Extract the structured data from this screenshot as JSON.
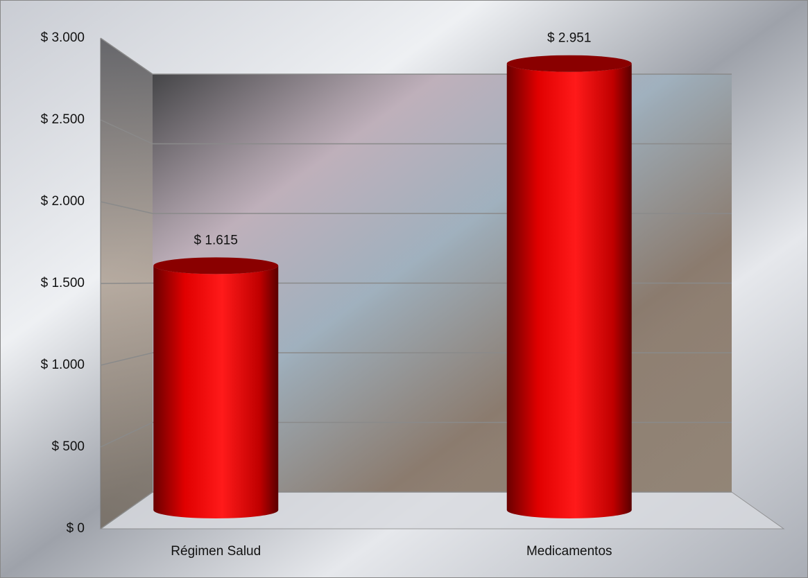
{
  "chart_data": {
    "type": "bar3d-cylinder",
    "categories": [
      "Régimen Salud",
      "Medicamentos"
    ],
    "values": [
      1615,
      2951
    ],
    "value_labels": [
      "$ 1.615",
      "$ 2.951"
    ],
    "color": "#ff0000",
    "ylim": [
      0,
      3000
    ],
    "yticks": [
      {
        "value": 0,
        "label": "$ 0"
      },
      {
        "value": 500,
        "label": "$ 500"
      },
      {
        "value": 1000,
        "label": "$ 1.000"
      },
      {
        "value": 1500,
        "label": "$ 1.500"
      },
      {
        "value": 2000,
        "label": "$ 2.000"
      },
      {
        "value": 2500,
        "label": "$ 2.500"
      },
      {
        "value": 3000,
        "label": "$ 3.000"
      }
    ],
    "grid": true
  }
}
